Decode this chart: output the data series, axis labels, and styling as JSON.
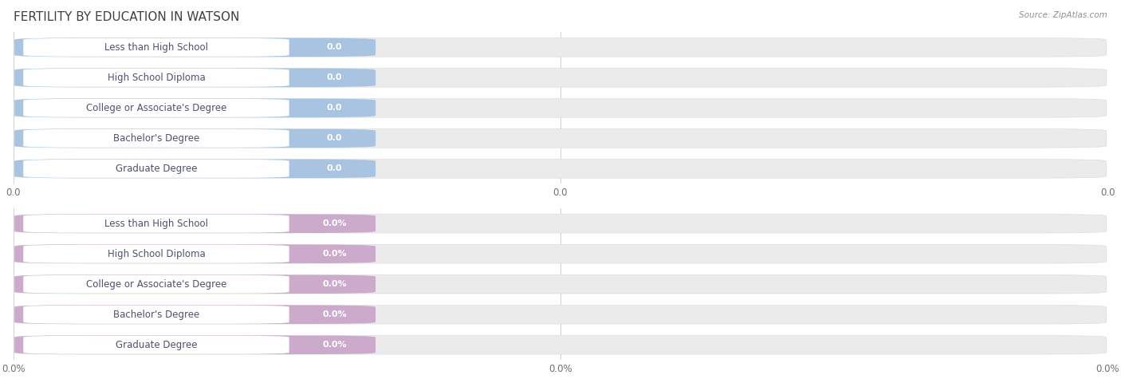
{
  "title": "FERTILITY BY EDUCATION IN WATSON",
  "source": "Source: ZipAtlas.com",
  "categories": [
    "Less than High School",
    "High School Diploma",
    "College or Associate's Degree",
    "Bachelor's Degree",
    "Graduate Degree"
  ],
  "values_top": [
    0.0,
    0.0,
    0.0,
    0.0,
    0.0
  ],
  "values_bottom": [
    0.0,
    0.0,
    0.0,
    0.0,
    0.0
  ],
  "bar_color_top": "#a8c4e0",
  "bar_color_bottom": "#ccaacc",
  "bar_bg_color": "#ebebeb",
  "background_color": "#ffffff",
  "title_color": "#404040",
  "source_color": "#909090",
  "label_text_color": "#505070",
  "tick_label_color": "#707070",
  "title_fontsize": 11,
  "label_fontsize": 8.5,
  "value_fontsize": 8,
  "tick_fontsize": 8.5,
  "top_tick_labels": [
    "0.0",
    "0.0",
    "0.0"
  ],
  "bottom_tick_labels": [
    "0.0%",
    "0.0%",
    "0.0%"
  ],
  "top_value_fmt": "0.0",
  "bottom_value_fmt": "0.0%"
}
